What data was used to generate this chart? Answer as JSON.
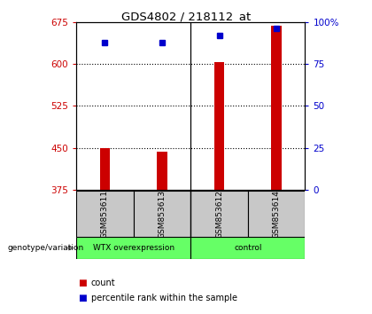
{
  "title": "GDS4802 / 218112_at",
  "samples": [
    "GSM853611",
    "GSM853613",
    "GSM853612",
    "GSM853614"
  ],
  "bar_bottom": 375,
  "red_values": [
    450,
    444,
    603,
    668
  ],
  "blue_values_pct": [
    88,
    88,
    92,
    96
  ],
  "ylim_left": [
    375,
    675
  ],
  "ylim_right": [
    0,
    100
  ],
  "yticks_left": [
    375,
    450,
    525,
    600,
    675
  ],
  "yticks_right": [
    0,
    25,
    50,
    75,
    100
  ],
  "ytick_labels_right": [
    "0",
    "25",
    "50",
    "75",
    "100%"
  ],
  "dotted_lines": [
    600,
    525,
    450
  ],
  "bar_color": "#CC0000",
  "dot_color": "#0000CC",
  "left_color": "#CC0000",
  "right_color": "#0000CC",
  "sample_bg": "#C8C8C8",
  "group1_label": "WTX overexpression",
  "group2_label": "control",
  "group_color": "#66FF66",
  "genotype_label": "genotype/variation",
  "legend_count": "count",
  "legend_pct": "percentile rank within the sample"
}
